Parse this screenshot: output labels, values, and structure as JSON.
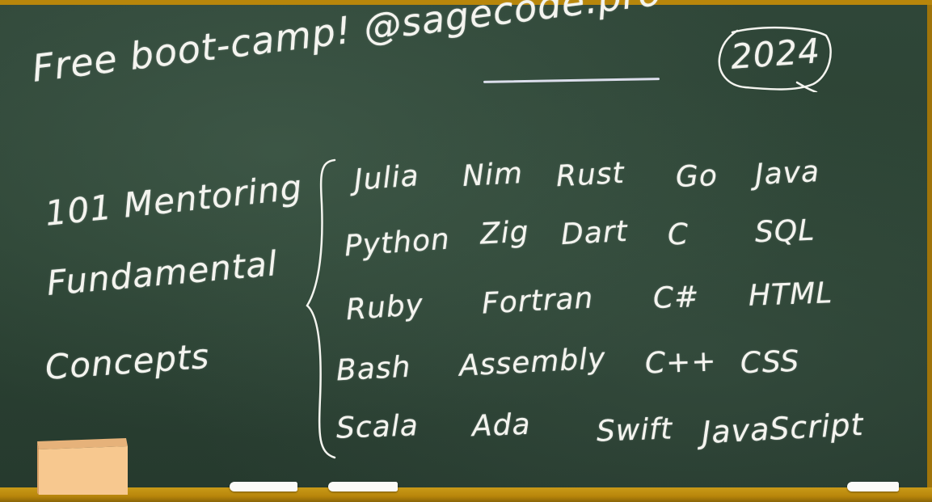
{
  "board": {
    "title": "Free boot-camp! @sagecode.pro",
    "year": "2024",
    "left_lines": [
      "101 Mentoring",
      "Fundamental",
      "Concepts"
    ],
    "languages": [
      [
        "Julia",
        "Nim",
        "Rust",
        "Go",
        "Java"
      ],
      [
        "Python",
        "Zig",
        "Dart",
        "C",
        "SQL"
      ],
      [
        "Ruby",
        "Fortran",
        "C#",
        "HTML"
      ],
      [
        "Bash",
        "Assembly",
        "C++",
        "CSS"
      ],
      [
        "Scala",
        "Ada",
        "Swift",
        "JavaScript"
      ]
    ]
  },
  "colors": {
    "board": "#2b4233",
    "frame": "#b8860b",
    "chalk": "#f4f4ef",
    "eraser": "#f7c88f"
  },
  "icons": {
    "brace": "left-curly-brace-icon",
    "eraser": "eraser-icon",
    "chalk": "chalk-stick-icon"
  }
}
